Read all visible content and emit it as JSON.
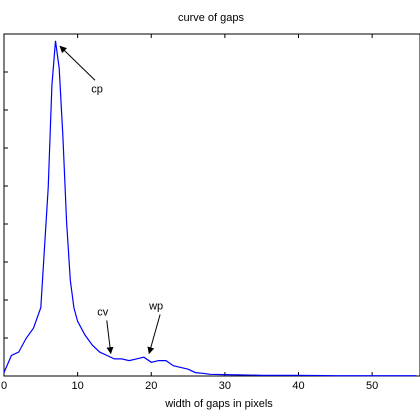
{
  "chart_data": {
    "type": "line",
    "title": "curve of gaps",
    "xlabel": "width of gaps in pixels",
    "ylabel": "",
    "xlim": [
      0,
      56.5
    ],
    "ylim": [
      0,
      1
    ],
    "xticks": [
      0,
      10,
      20,
      30,
      40,
      50
    ],
    "xtick_labels": [
      "0",
      "10",
      "20",
      "30",
      "40",
      "50"
    ],
    "grid": false,
    "line_color": "#0000ff",
    "series": [
      {
        "name": "",
        "x": [
          0,
          1,
          2,
          3,
          4,
          5,
          6,
          6.5,
          7,
          7.5,
          8,
          8.5,
          9,
          9.5,
          10,
          11,
          12,
          13,
          14,
          15,
          16,
          17,
          18,
          19,
          20,
          21,
          22,
          23,
          24,
          25,
          26,
          27,
          28,
          30,
          35,
          40,
          45,
          50,
          56
        ],
        "y": [
          0.01,
          0.06,
          0.07,
          0.11,
          0.14,
          0.2,
          0.55,
          0.85,
          0.98,
          0.9,
          0.7,
          0.45,
          0.28,
          0.2,
          0.16,
          0.12,
          0.09,
          0.07,
          0.06,
          0.05,
          0.05,
          0.045,
          0.05,
          0.055,
          0.04,
          0.045,
          0.045,
          0.03,
          0.025,
          0.02,
          0.01,
          0.008,
          0.005,
          0.004,
          0.002,
          0.002,
          0.001,
          0.001,
          0.001
        ]
      }
    ],
    "annotations": [
      {
        "text": "cp",
        "x": 7.2,
        "y": 0.97
      },
      {
        "text": "cv",
        "x": 14.5,
        "y": 0.06
      },
      {
        "text": "wp",
        "x": 19.3,
        "y": 0.06
      }
    ]
  }
}
